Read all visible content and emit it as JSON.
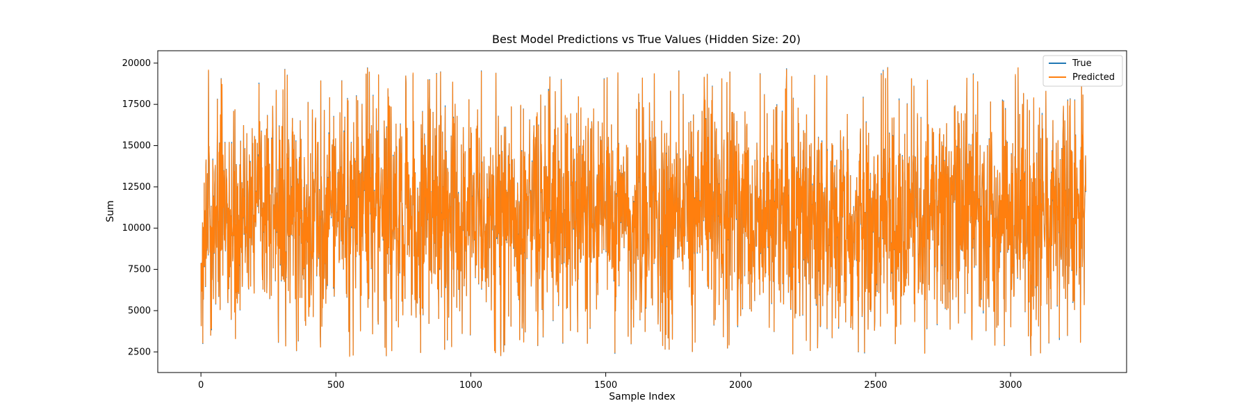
{
  "chart_data": {
    "type": "line",
    "title": "Best Model Predictions vs True Values (Hidden Size: 20)",
    "xlabel": "Sample Index",
    "ylabel": "Sum",
    "xlim": [
      -160,
      3430
    ],
    "ylim": [
      1250,
      20750
    ],
    "xticks": [
      0,
      500,
      1000,
      1500,
      2000,
      2500,
      3000
    ],
    "yticks": [
      2500,
      5000,
      7500,
      10000,
      12500,
      15000,
      17500,
      20000
    ],
    "grid": false,
    "legend_position": "top-right",
    "series_generation": {
      "n_points": 3280,
      "value_min": 2200,
      "value_max": 19800,
      "typical_mean": 10800,
      "note_visible": "dense noisy line; predicted overlays true almost exactly"
    },
    "series": [
      {
        "name": "True",
        "color": "#1f77b4"
      },
      {
        "name": "Predicted",
        "color": "#ff7f0e"
      }
    ]
  }
}
